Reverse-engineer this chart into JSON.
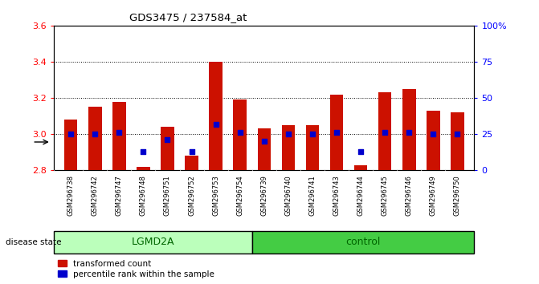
{
  "title": "GDS3475 / 237584_at",
  "samples": [
    "GSM296738",
    "GSM296742",
    "GSM296747",
    "GSM296748",
    "GSM296751",
    "GSM296752",
    "GSM296753",
    "GSM296754",
    "GSM296739",
    "GSM296740",
    "GSM296741",
    "GSM296743",
    "GSM296744",
    "GSM296745",
    "GSM296746",
    "GSM296749",
    "GSM296750"
  ],
  "transformed_count": [
    3.08,
    3.15,
    3.18,
    2.82,
    3.04,
    2.88,
    3.4,
    3.19,
    3.03,
    3.05,
    3.05,
    3.22,
    2.83,
    3.23,
    3.25,
    3.13,
    3.12
  ],
  "percentile_rank": [
    25,
    25,
    26,
    13,
    21,
    13,
    32,
    26,
    20,
    25,
    25,
    26,
    13,
    26,
    26,
    25,
    25
  ],
  "groups": [
    "LGMD2A",
    "LGMD2A",
    "LGMD2A",
    "LGMD2A",
    "LGMD2A",
    "LGMD2A",
    "LGMD2A",
    "LGMD2A",
    "control",
    "control",
    "control",
    "control",
    "control",
    "control",
    "control",
    "control",
    "control"
  ],
  "n_lgmd2a": 8,
  "ylim_left": [
    2.8,
    3.6
  ],
  "ylim_right": [
    0,
    100
  ],
  "yticks_left": [
    2.8,
    3.0,
    3.2,
    3.4,
    3.6
  ],
  "yticks_right": [
    0,
    25,
    50,
    75,
    100
  ],
  "yticklabels_right": [
    "0",
    "25",
    "50",
    "75",
    "100%"
  ],
  "bar_color": "#cc1100",
  "dot_color": "#0000cc",
  "base": 2.8,
  "lgmd2a_color": "#bbffbb",
  "control_color": "#44cc44",
  "group_label_color": "#006600",
  "xtick_bg": "#cccccc",
  "plot_bg": "#ffffff",
  "bar_width": 0.55,
  "grid_dotted_vals": [
    3.0,
    3.2,
    3.4
  ]
}
